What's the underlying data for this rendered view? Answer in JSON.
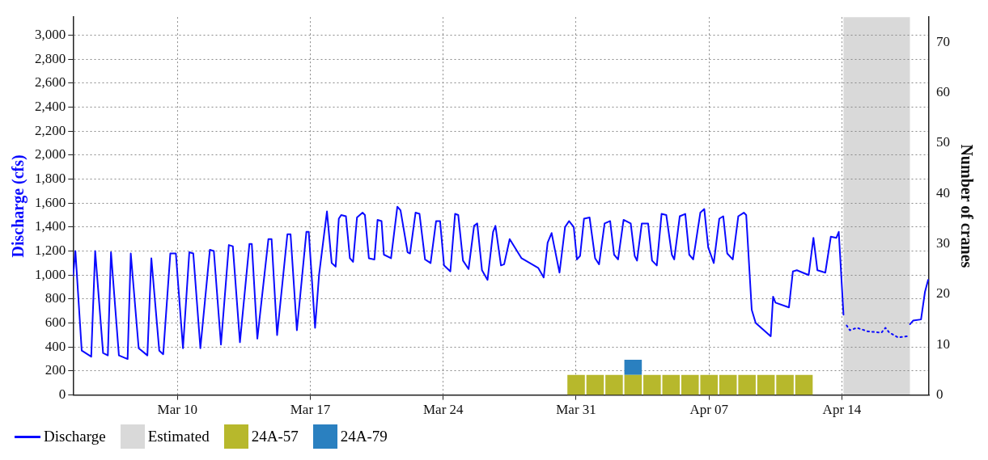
{
  "chart_data": {
    "type": "line",
    "ylabel": "Discharge (cfs)",
    "y2label": "Number of cranes",
    "xlim": [
      "--03-04T12:00",
      "--04-18T14:00"
    ],
    "xticks": [
      {
        "value": "--03-10",
        "label": "Mar 10"
      },
      {
        "value": "--03-17",
        "label": "Mar 17"
      },
      {
        "value": "--03-24",
        "label": "Mar 24"
      },
      {
        "value": "--03-31",
        "label": "Mar 31"
      },
      {
        "value": "--04-07",
        "label": "Apr 07"
      },
      {
        "value": "--04-14",
        "label": "Apr 14"
      }
    ],
    "ylim": [
      0,
      3150
    ],
    "yticks": [
      0,
      200,
      400,
      600,
      800,
      {
        "value": 1000,
        "label": "1,000"
      },
      {
        "value": 1200,
        "label": "1,200"
      },
      {
        "value": 1400,
        "label": "1,400"
      },
      {
        "value": 1600,
        "label": "1,600"
      },
      {
        "value": 1800,
        "label": "1,800"
      },
      {
        "value": 2000,
        "label": "2,000"
      },
      {
        "value": 2200,
        "label": "2,200"
      },
      {
        "value": 2400,
        "label": "2,400"
      },
      {
        "value": 2600,
        "label": "2,600"
      },
      {
        "value": 2800,
        "label": "2,800"
      },
      {
        "value": 3000,
        "label": "3,000"
      }
    ],
    "y2lim": [
      0,
      75
    ],
    "y2ticks": [
      0,
      10,
      20,
      30,
      40,
      50,
      60,
      70
    ],
    "grid": true,
    "legend": "bottom left",
    "marker": "none",
    "stacked": true,
    "bands": [
      {
        "axis": "x",
        "from": "--04-14T02:00",
        "to": "--04-17T14:00",
        "label": "Estimated",
        "color": "#d9d9d9"
      }
    ],
    "series": [
      {
        "name": "Discharge",
        "color": "#0a0aff",
        "x": [
          "--03-04T12:00",
          "--03-04T15:00",
          "--03-04T23:00",
          "--03-05T11:00",
          "--03-05T16:00",
          "--03-06T02:00",
          "--03-06T08:00",
          "--03-06T12:00",
          "--03-06T22:00",
          "--03-07T09:00",
          "--03-07T13:00",
          "--03-07T23:00",
          "--03-08T10:00",
          "--03-08T15:00",
          "--03-09T01:00",
          "--03-09T06:00",
          "--03-09T15:00",
          "--03-09T22:00",
          "--03-10T07:00",
          "--03-10T15:00",
          "--03-10T20:00",
          "--03-11T05:00",
          "--03-11T17:00",
          "--03-11T22:00",
          "--03-12T07:00",
          "--03-12T17:00",
          "--03-12T22:00",
          "--03-13T07:00",
          "--03-13T19:00",
          "--03-13T22:00",
          "--03-14T05:00",
          "--03-14T19:00",
          "--03-14T23:00",
          "--03-15T06:00",
          "--03-15T19:00",
          "--03-15T23:00",
          "--03-16T07:00",
          "--03-16T19:00",
          "--03-16T22:00",
          "--03-17T06:00",
          "--03-17T11:00",
          "--03-17T21:00",
          "--03-18T03:00",
          "--03-18T08:00",
          "--03-18T12:00",
          "--03-18T15:00",
          "--03-18T21:00",
          "--03-19T02:00",
          "--03-19T06:00",
          "--03-19T11:00",
          "--03-19T18:00",
          "--03-19T21:00",
          "--03-20T02:00",
          "--03-20T09:00",
          "--03-20T13:00",
          "--03-20T18:00",
          "--03-20T21:00",
          "--03-21T06:00",
          "--03-21T14:00",
          "--03-21T18:00",
          "--03-22T03:00",
          "--03-22T06:00",
          "--03-22T13:00",
          "--03-22T18:00",
          "--03-23T01:00",
          "--03-23T08:00",
          "--03-23T15:00",
          "--03-23T20:00",
          "--03-24T01:00",
          "--03-24T09:00",
          "--03-24T15:00",
          "--03-24T19:00",
          "--03-25T01:00",
          "--03-25T08:00",
          "--03-25T15:00",
          "--03-25T19:00",
          "--03-26T01:00",
          "--03-26T08:00",
          "--03-26T15:00",
          "--03-26T18:00",
          "--03-27T01:00",
          "--03-27T05:00",
          "--03-27T12:00",
          "--03-28T03:00",
          "--03-29T00:00",
          "--03-29T07:00",
          "--03-29T12:00",
          "--03-29T17:00",
          "--03-29T20:00",
          "--03-30T03:00",
          "--03-30T10:00",
          "--03-30T15:00",
          "--03-30T21:00",
          "--03-31T01:00",
          "--03-31T05:00",
          "--03-31T10:00",
          "--03-31T17:00",
          "--04-01T00:00",
          "--04-01T05:00",
          "--04-01T12:00",
          "--04-01T19:00",
          "--04-02T00:00",
          "--04-02T05:00",
          "--04-02T12:00",
          "--04-02T21:00",
          "--04-03T02:00",
          "--04-03T05:00",
          "--04-03T11:00",
          "--04-03T19:00",
          "--04-04T00:00",
          "--04-04T06:00",
          "--04-04T12:00",
          "--04-04T18:00",
          "--04-05T01:00",
          "--04-05T04:00",
          "--04-05T11:00",
          "--04-05T18:00",
          "--04-05T23:00",
          "--04-06T04:00",
          "--04-06T13:00",
          "--04-06T18:00",
          "--04-06T23:00",
          "--04-07T06:00",
          "--04-07T13:00",
          "--04-07T18:00",
          "--04-07T23:00",
          "--04-08T06:00",
          "--04-08T13:00",
          "--04-08T20:00",
          "--04-08T23:00",
          "--04-09T06:00",
          "--04-09T11:00",
          "--04-10T06:00",
          "--04-10T09:00",
          "--04-10T12:00",
          "--04-11T05:00",
          "--04-11T10:00",
          "--04-11T15:00",
          "--04-12T06:00",
          "--04-12T12:00",
          "--04-12T17:00",
          "--04-13T03:00",
          "--04-13T10:00",
          "--04-13T17:00",
          "--04-13T20:00",
          "--04-14T02:00",
          "--04-16T00:00",
          "--04-17T14:00",
          "--04-17T18:00",
          "--04-18T04:00",
          "--04-18T09:00",
          "--04-18T13:00"
        ],
        "values": [
          990,
          1200,
          370,
          320,
          1200,
          350,
          330,
          1190,
          330,
          300,
          1180,
          390,
          330,
          1140,
          370,
          340,
          1180,
          1180,
          390,
          1190,
          1180,
          390,
          1210,
          1200,
          420,
          1250,
          1240,
          440,
          1260,
          1260,
          470,
          1300,
          1300,
          500,
          1340,
          1340,
          540,
          1360,
          1360,
          560,
          1000,
          1530,
          1100,
          1070,
          1470,
          1500,
          1490,
          1140,
          1110,
          1480,
          1520,
          1500,
          1140,
          1130,
          1460,
          1450,
          1170,
          1140,
          1570,
          1540,
          1190,
          1180,
          1520,
          1510,
          1130,
          1100,
          1450,
          1450,
          1080,
          1030,
          1510,
          1500,
          1120,
          1050,
          1410,
          1430,
          1040,
          960,
          1360,
          1410,
          1080,
          1090,
          1300,
          1140,
          1060,
          980,
          1270,
          1350,
          1250,
          1020,
          1400,
          1450,
          1400,
          1130,
          1160,
          1470,
          1480,
          1140,
          1090,
          1430,
          1450,
          1170,
          1130,
          1460,
          1430,
          1160,
          1120,
          1430,
          1430,
          1120,
          1080,
          1510,
          1500,
          1170,
          1130,
          1490,
          1510,
          1170,
          1130,
          1520,
          1550,
          1230,
          1100,
          1470,
          1490,
          1180,
          1130,
          1490,
          1520,
          1500,
          710,
          600,
          490,
          820,
          770,
          730,
          1030,
          1040,
          1000,
          1310,
          1040,
          1020,
          1320,
          1310,
          1360,
          670,
          null,
          590,
          620,
          630,
          860,
          960
        ]
      },
      {
        "line_style": "dotted",
        "color": "#0a0aff",
        "x": [
          "--04-14T06:00",
          "--04-14T10:00",
          "--04-14T19:00",
          "--04-15T09:00",
          "--04-16T02:00",
          "--04-16T07:00",
          "--04-16T12:00",
          "--04-16T23:00",
          "--04-17T11:00"
        ],
        "values": [
          580,
          540,
          560,
          530,
          520,
          560,
          520,
          480,
          490
        ]
      },
      {
        "name": "24A-57",
        "type": "bar",
        "axis": "y2",
        "color": "#b7b82c",
        "x": [
          "--03-31",
          "--04-01",
          "--04-02",
          "--04-03",
          "--04-04",
          "--04-05",
          "--04-06",
          "--04-07",
          "--04-08",
          "--04-09",
          "--04-10",
          "--04-11",
          "--04-12"
        ],
        "values": [
          4,
          4,
          4,
          4,
          4,
          4,
          4,
          4,
          4,
          4,
          4,
          4,
          4
        ]
      },
      {
        "name": "24A-79",
        "type": "bar",
        "axis": "y2",
        "color": "#2a80c0",
        "x": [
          "--04-03"
        ],
        "values": [
          3
        ]
      }
    ]
  }
}
